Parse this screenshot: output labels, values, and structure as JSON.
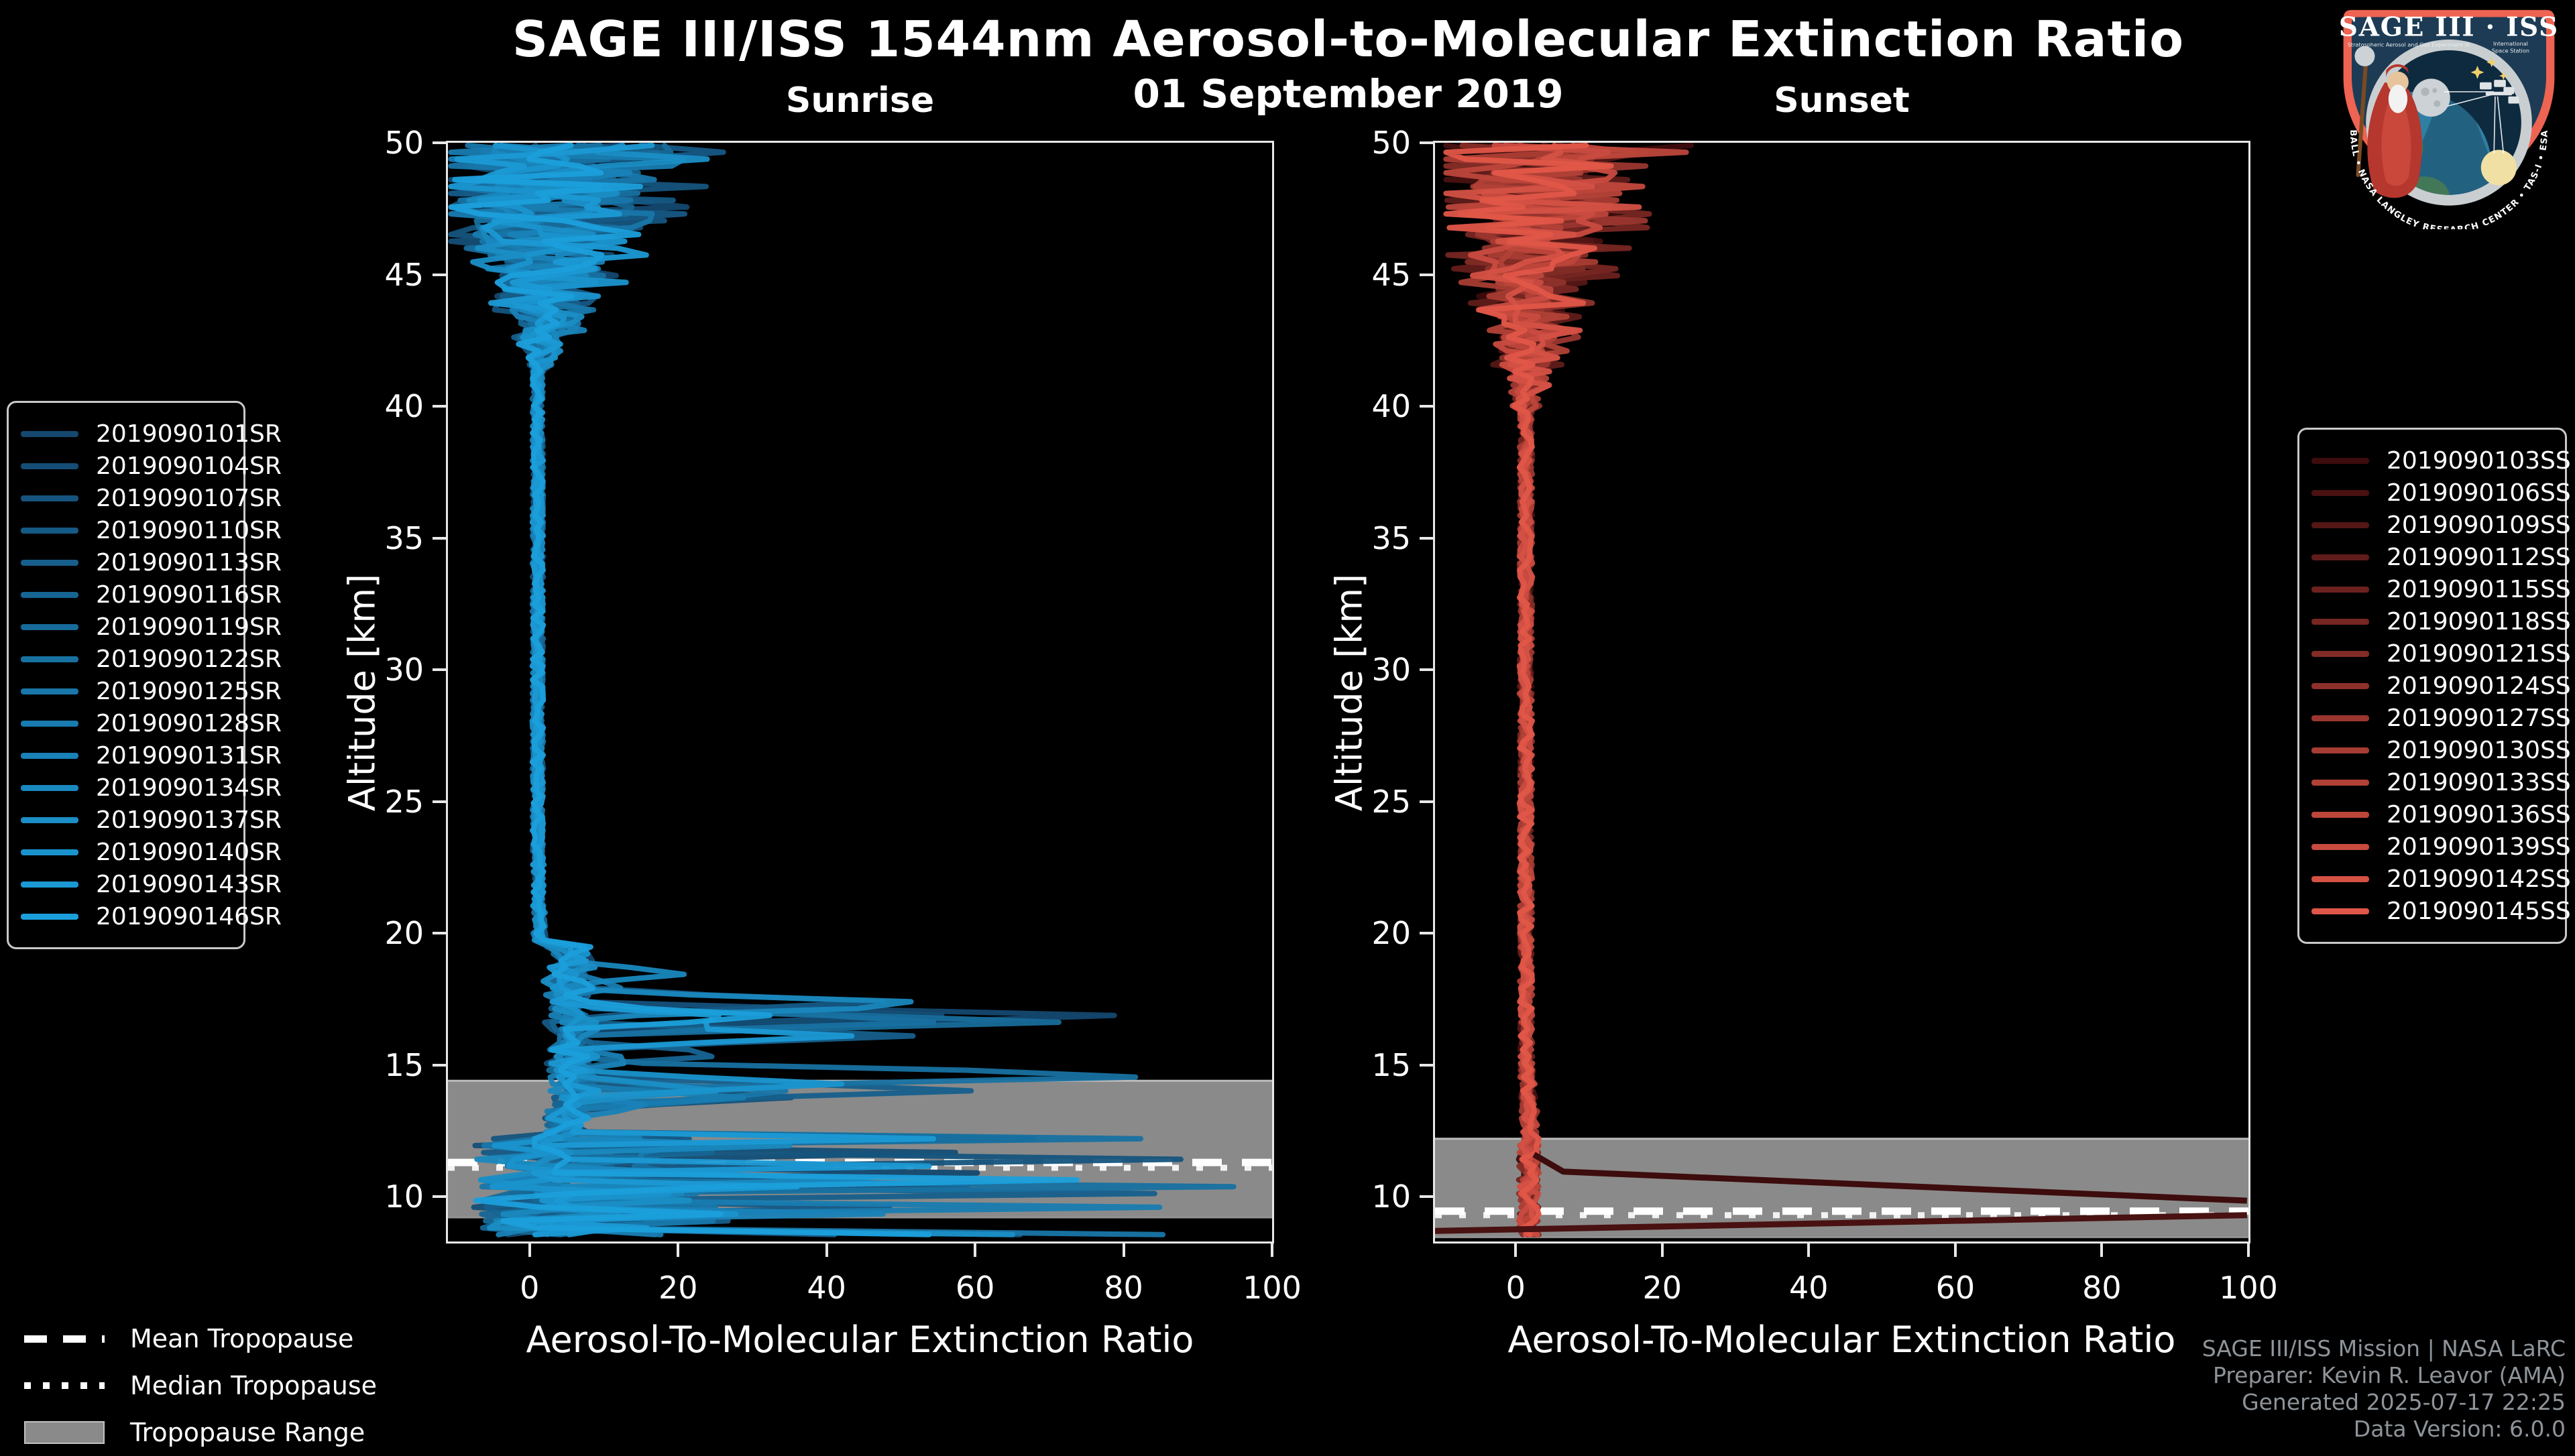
{
  "header": {
    "title": "SAGE III/ISS 1544nm Aerosol-to-Molecular Extinction Ratio",
    "subtitle": "01 September 2019"
  },
  "logo": {
    "title_left": "SAGE III",
    "title_sep": "·",
    "title_right": "ISS",
    "sub_left": "Stratospheric Aerosol and Gas Experiment III",
    "sub_right1": "International",
    "sub_right2": "Space Station",
    "border_text": "BALL • NASA LANGLEY RESEARCH CENTER • TAS-I • ESA"
  },
  "chart_data": [
    {
      "type": "line",
      "panel": "sunrise",
      "title": "Sunrise",
      "xlabel": "Aerosol-To-Molecular Extinction Ratio",
      "ylabel": "Altitude [km]",
      "x_range": [
        -11,
        100
      ],
      "y_range": [
        8.3,
        50
      ],
      "x_ticks": [
        0,
        20,
        40,
        60,
        80,
        100
      ],
      "y_ticks": [
        10,
        15,
        20,
        25,
        30,
        35,
        40,
        45,
        50
      ],
      "grid": false,
      "legend_position": "left-outside",
      "color_start": "#14486F",
      "color_end": "#1B9FDB",
      "series": [
        "2019090101SR",
        "2019090104SR",
        "2019090107SR",
        "2019090110SR",
        "2019090113SR",
        "2019090116SR",
        "2019090119SR",
        "2019090122SR",
        "2019090125SR",
        "2019090128SR",
        "2019090131SR",
        "2019090134SR",
        "2019090137SR",
        "2019090140SR",
        "2019090143SR",
        "2019090146SR"
      ],
      "tropopause": {
        "range_km": [
          9.2,
          14.4
        ],
        "mean_km": 11.3,
        "median_km": 11.1
      },
      "profile_model": {
        "description": "16 vertical extinction-ratio profiles: quiet values ~0-2 between 20-41 km, strong oscillations -10..35 above 42 km, enhanced aerosol layer with spikes up to ~100 between 12.5-19 km, chaotic excursions 0-100 below 12.5 km",
        "quiet_band_km": [
          19.6,
          41.5
        ],
        "quiet_value": 1.0,
        "upper_noise_start_km": 41.5,
        "upper_noise_max": 35,
        "enhanced_layer_km": [
          12.45,
          19.6
        ],
        "enhanced_spike_max": 100,
        "chaos_below_km": 12.45,
        "chaos_max": 100
      }
    },
    {
      "type": "line",
      "panel": "sunset",
      "title": "Sunset",
      "xlabel": "Aerosol-To-Molecular Extinction Ratio",
      "ylabel": "Altitude [km]",
      "x_range": [
        -11,
        100
      ],
      "y_range": [
        8.3,
        50
      ],
      "x_ticks": [
        0,
        20,
        40,
        60,
        80,
        100
      ],
      "y_ticks": [
        10,
        15,
        20,
        25,
        30,
        35,
        40,
        45,
        50
      ],
      "grid": false,
      "legend_position": "right-outside",
      "color_start": "#3D0C0D",
      "color_end": "#E05648",
      "series": [
        "2019090103SS",
        "2019090106SS",
        "2019090109SS",
        "2019090112SS",
        "2019090115SS",
        "2019090118SS",
        "2019090121SS",
        "2019090124SS",
        "2019090127SS",
        "2019090130SS",
        "2019090133SS",
        "2019090136SS",
        "2019090139SS",
        "2019090142SS",
        "2019090145SS"
      ],
      "tropopause": {
        "range_km": [
          8.45,
          12.2
        ],
        "mean_km": 9.45,
        "median_km": 9.3
      },
      "profile_model": {
        "description": "15 narrow profiles: ~0-4 from 12-40 km, oscillations -8..30 above 40 km, cluster stays 0-4 below 12 km except two dark outlier traces sloping to ratio 100 near 9.3-10 km",
        "quiet_band_km": [
          12.3,
          39.8
        ],
        "quiet_value": 1.2,
        "upper_noise_start_km": 39.8,
        "upper_noise_max": 30,
        "chaos_below_km": 12.3,
        "chaos_max": 4
      },
      "outliers": [
        {
          "series_index": 0,
          "points_ratio_alt": [
            [
              2.5,
              11.6
            ],
            [
              6.5,
              10.95
            ],
            [
              99.8,
              9.85
            ]
          ]
        },
        {
          "series_index": 1,
          "points_ratio_alt": [
            [
              -11,
              8.7
            ],
            [
              99.8,
              9.3
            ]
          ]
        }
      ]
    }
  ],
  "tropopause_legend": [
    {
      "label": "Mean Tropopause",
      "style": "dashed"
    },
    {
      "label": "Median Tropopause",
      "style": "dotted"
    },
    {
      "label": "Tropopause Range",
      "style": "range"
    }
  ],
  "attribution": {
    "line1": "SAGE III/ISS Mission | NASA LaRC",
    "line2": "Preparer: Kevin R. Leavor (AMA)",
    "line3": "Generated 2025-07-17 22:25",
    "line4": "Data Version: 6.0.0"
  },
  "colors": {
    "background": "#000000",
    "text": "#FFFFFF",
    "attribution_text": "#8E9499",
    "spine": "#E8E8E8",
    "tropopause_band": "#8A8A8A",
    "tropopause_band_edge": "#BBBBBB",
    "tropopause_mean_line": "#FFFFFF",
    "tropopause_median_line": "#F2F2F2",
    "legend_border": "#C9C9C9",
    "logo_border": "#EE6352",
    "logo_field": "#1D3B54"
  }
}
